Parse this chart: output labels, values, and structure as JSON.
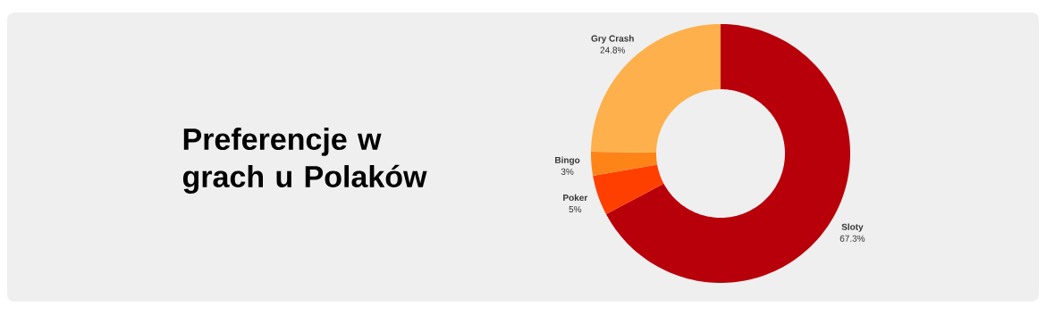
{
  "chart_data": {
    "type": "donut",
    "title": "Preferencje w grach u Polaków",
    "categories": [
      "Sloty",
      "Poker",
      "Bingo",
      "Gry Crash"
    ],
    "values": [
      67.3,
      5,
      3,
      24.8
    ],
    "colors": [
      "#b8000a",
      "#ff3f00",
      "#ff8418",
      "#fdb04b"
    ],
    "value_labels": [
      "67.3%",
      "5%",
      "3%",
      "24.8%"
    ]
  }
}
